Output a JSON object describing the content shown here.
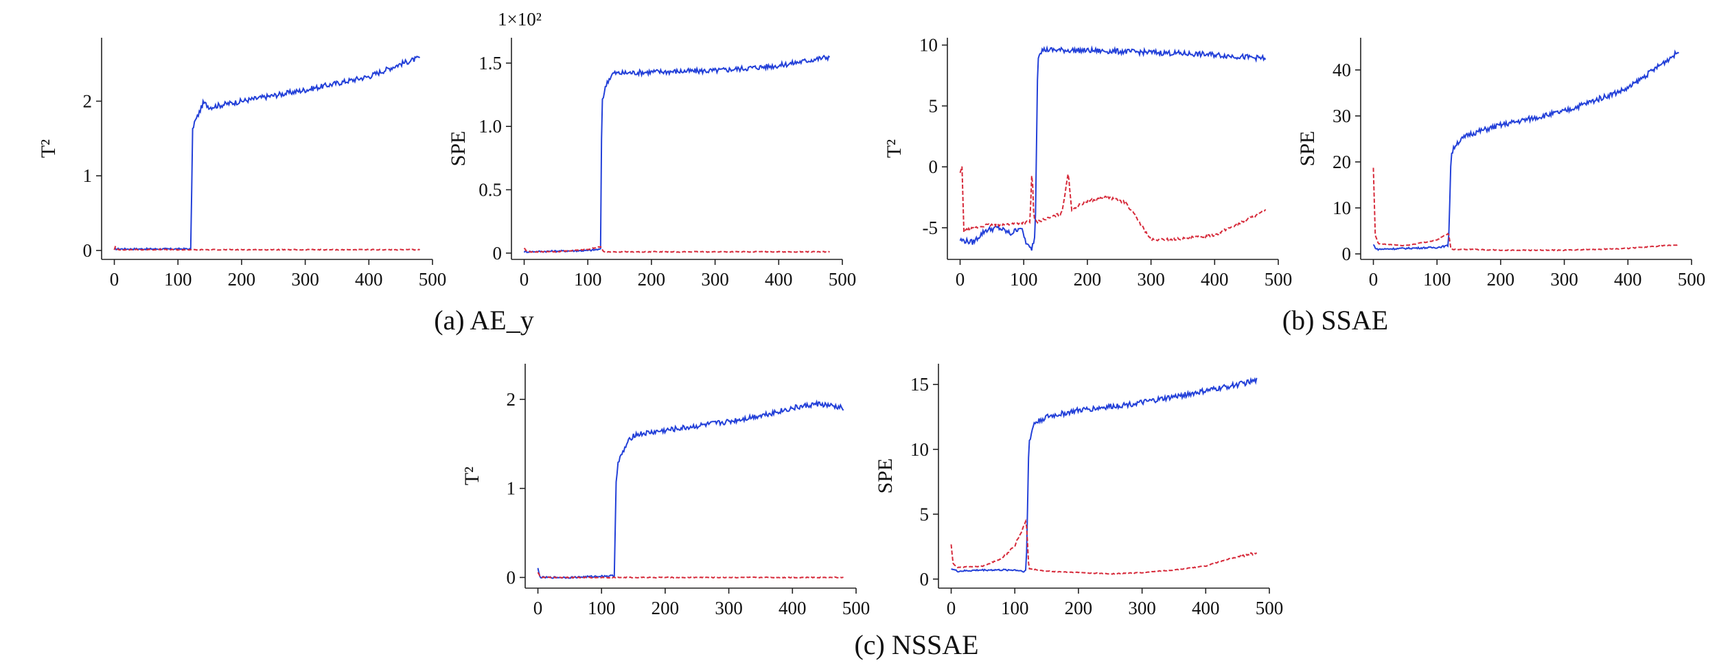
{
  "captions": {
    "a": "(a) AE_y",
    "b": "(b) SSAE",
    "c": "(c) NSSAE"
  },
  "chart_data": [
    {
      "id": "a1",
      "type": "line",
      "panel": "(a) AE_y",
      "ylabel": "T²",
      "xlim": [
        -20,
        500
      ],
      "ylim": [
        -0.12,
        2.85
      ],
      "x_ticks": [
        0,
        100,
        200,
        300,
        400,
        500
      ],
      "y_ticks": [
        0,
        1,
        2
      ],
      "series": [
        {
          "color": "#2340d8",
          "style": "solid",
          "x": [
            0,
            120,
            123,
            125,
            130,
            140,
            150,
            200,
            300,
            400,
            450,
            480
          ],
          "y": [
            0.02,
            0.02,
            1.6,
            1.7,
            1.78,
            1.98,
            1.92,
            2.0,
            2.15,
            2.33,
            2.5,
            2.58
          ]
        },
        {
          "color": "#d62a3a",
          "style": "dashed",
          "x": [
            0,
            2,
            5,
            480
          ],
          "y": [
            0.01,
            0.06,
            0.01,
            0.01
          ]
        }
      ]
    },
    {
      "id": "a2",
      "type": "line",
      "panel": "(a) AE_y",
      "ylabel": "SPE",
      "multiplier": "1×10²",
      "xlim": [
        -20,
        500
      ],
      "ylim": [
        -0.05,
        1.7
      ],
      "x_ticks": [
        0,
        100,
        200,
        300,
        400,
        500
      ],
      "y_ticks": [
        0,
        0.5,
        1.0,
        1.5
      ],
      "y_tick_labels": [
        "0",
        "0.5",
        "1.0",
        "1.5"
      ],
      "series": [
        {
          "color": "#2340d8",
          "style": "solid",
          "x": [
            0,
            100,
            120,
            122,
            125,
            130,
            140,
            150,
            200,
            300,
            400,
            480
          ],
          "y": [
            0.01,
            0.02,
            0.03,
            1.2,
            1.25,
            1.35,
            1.42,
            1.42,
            1.43,
            1.44,
            1.48,
            1.55
          ]
        },
        {
          "color": "#d62a3a",
          "style": "dashed",
          "x": [
            0,
            3,
            10,
            50,
            100,
            120,
            125,
            200,
            300,
            400,
            480
          ],
          "y": [
            0.04,
            0.02,
            0.01,
            0.01,
            0.03,
            0.05,
            0.01,
            0.01,
            0.01,
            0.01,
            0.01
          ]
        }
      ]
    },
    {
      "id": "b1",
      "type": "line",
      "panel": "(b) SSAE",
      "ylabel": "T²",
      "xlim": [
        -20,
        500
      ],
      "ylim": [
        -7.6,
        10.6
      ],
      "x_ticks": [
        0,
        100,
        200,
        300,
        400,
        500
      ],
      "y_ticks": [
        -5,
        0,
        5,
        10
      ],
      "series": [
        {
          "color": "#2340d8",
          "style": "solid",
          "x": [
            0,
            20,
            40,
            60,
            80,
            95,
            105,
            112,
            118,
            122,
            125,
            130,
            140,
            200,
            300,
            400,
            480
          ],
          "y": [
            -6.0,
            -6.2,
            -5.2,
            -5.0,
            -5.5,
            -4.9,
            -6.4,
            -6.8,
            -5.6,
            9.0,
            9.4,
            9.6,
            9.6,
            9.55,
            9.4,
            9.2,
            8.9
          ]
        },
        {
          "color": "#d62a3a",
          "style": "dashed",
          "x": [
            0,
            3,
            6,
            10,
            40,
            80,
            110,
            113,
            116,
            120,
            140,
            160,
            170,
            175,
            200,
            230,
            260,
            280,
            300,
            350,
            400,
            440,
            480
          ],
          "y": [
            -0.5,
            0.0,
            -5.3,
            -5.2,
            -4.8,
            -4.7,
            -4.5,
            0.0,
            -4.3,
            -4.5,
            -4.2,
            -3.8,
            -0.4,
            -3.5,
            -2.8,
            -2.5,
            -2.9,
            -4.4,
            -6.0,
            -5.9,
            -5.6,
            -4.6,
            -3.6
          ]
        }
      ]
    },
    {
      "id": "b2",
      "type": "line",
      "panel": "(b) SSAE",
      "ylabel": "SPE",
      "xlim": [
        -20,
        500
      ],
      "ylim": [
        -1.2,
        47
      ],
      "x_ticks": [
        0,
        100,
        200,
        300,
        400,
        500
      ],
      "y_ticks": [
        0,
        10,
        20,
        30,
        40
      ],
      "series": [
        {
          "color": "#2340d8",
          "style": "solid",
          "x": [
            0,
            5,
            50,
            100,
            118,
            122,
            125,
            130,
            150,
            200,
            300,
            400,
            450,
            480
          ],
          "y": [
            2.0,
            1.0,
            1.2,
            1.4,
            1.8,
            21.5,
            22.5,
            24.0,
            26.0,
            28.0,
            31.0,
            36.0,
            41.0,
            44.0
          ]
        },
        {
          "color": "#d62a3a",
          "style": "dashed",
          "x": [
            0,
            3,
            8,
            50,
            100,
            118,
            122,
            150,
            200,
            300,
            400,
            480
          ],
          "y": [
            18.5,
            4.0,
            2.2,
            1.8,
            3.0,
            4.5,
            1.0,
            1.0,
            0.8,
            0.8,
            1.2,
            2.0
          ]
        }
      ]
    },
    {
      "id": "c1",
      "type": "line",
      "panel": "(c) NSSAE",
      "ylabel": "T²",
      "xlim": [
        -20,
        500
      ],
      "ylim": [
        -0.12,
        2.4
      ],
      "x_ticks": [
        0,
        100,
        200,
        300,
        400,
        500
      ],
      "y_ticks": [
        0,
        1,
        2
      ],
      "series": [
        {
          "color": "#2340d8",
          "style": "solid",
          "x": [
            0,
            3,
            6,
            50,
            120,
            123,
            126,
            130,
            140,
            150,
            200,
            250,
            300,
            350,
            400,
            440,
            480
          ],
          "y": [
            0.1,
            0.01,
            0.0,
            0.0,
            0.02,
            1.1,
            1.28,
            1.35,
            1.5,
            1.6,
            1.65,
            1.7,
            1.75,
            1.82,
            1.9,
            1.95,
            1.9
          ]
        },
        {
          "color": "#d62a3a",
          "style": "dashed",
          "x": [
            0,
            3,
            6,
            480
          ],
          "y": [
            0.06,
            0.02,
            0.0,
            0.0
          ]
        }
      ]
    },
    {
      "id": "c2",
      "type": "line",
      "panel": "(c) NSSAE",
      "ylabel": "SPE",
      "xlim": [
        -20,
        500
      ],
      "ylim": [
        -0.7,
        16.6
      ],
      "x_ticks": [
        0,
        100,
        200,
        300,
        400,
        500
      ],
      "y_ticks": [
        0,
        5,
        10,
        15
      ],
      "series": [
        {
          "color": "#2340d8",
          "style": "solid",
          "x": [
            0,
            10,
            50,
            100,
            115,
            118,
            122,
            125,
            130,
            150,
            200,
            300,
            400,
            450,
            480
          ],
          "y": [
            0.8,
            0.6,
            0.7,
            0.7,
            0.6,
            0.7,
            10.5,
            11.0,
            12.0,
            12.5,
            13.0,
            13.6,
            14.5,
            15.0,
            15.3
          ]
        },
        {
          "color": "#d62a3a",
          "style": "dashed",
          "x": [
            0,
            3,
            10,
            50,
            80,
            100,
            110,
            118,
            122,
            150,
            200,
            250,
            300,
            350,
            400,
            440,
            480
          ],
          "y": [
            2.7,
            1.2,
            0.9,
            1.0,
            1.6,
            2.6,
            3.6,
            4.5,
            0.8,
            0.6,
            0.5,
            0.4,
            0.5,
            0.7,
            1.0,
            1.6,
            2.0
          ]
        }
      ]
    }
  ]
}
